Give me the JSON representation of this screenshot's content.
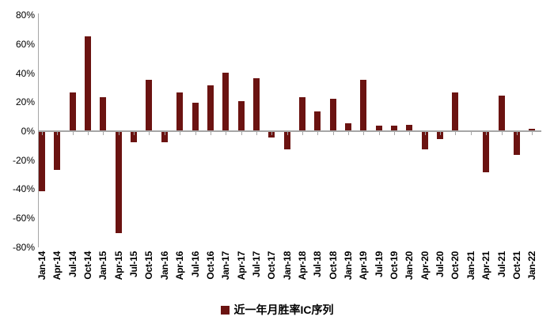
{
  "chart_data": {
    "type": "bar",
    "title": "",
    "xlabel": "",
    "ylabel": "",
    "categories": [
      "Jan-14",
      "Apr-14",
      "Jul-14",
      "Oct-14",
      "Jan-15",
      "Apr-15",
      "Jul-15",
      "Oct-15",
      "Jan-16",
      "Apr-16",
      "Jul-16",
      "Oct-16",
      "Jan-17",
      "Apr-17",
      "Jul-17",
      "Oct-17",
      "Jan-18",
      "Apr-18",
      "Jul-18",
      "Oct-18",
      "Jan-19",
      "Apr-19",
      "Jul-19",
      "Oct-19",
      "Jan-20",
      "Apr-20",
      "Jul-20",
      "Oct-20",
      "Jan-21",
      "Apr-21",
      "Jul-21",
      "Oct-21",
      "Jan-22"
    ],
    "values": [
      -41,
      -26,
      26,
      65,
      23,
      -70,
      -7,
      35,
      -7,
      26,
      19,
      31,
      40,
      20,
      36,
      -4,
      -12,
      23,
      13,
      22,
      5,
      35,
      3,
      3,
      4,
      -12,
      -5,
      26,
      0,
      -28,
      24,
      -16,
      1
    ],
    "unit": "%",
    "series_name": "近一年月胜率IC序列",
    "ylim": [
      -80,
      80
    ],
    "y_axis": {
      "ticks": [
        "80%",
        "60%",
        "40%",
        "20%",
        "0%",
        "-20%",
        "-40%",
        "-60%",
        "-80%"
      ]
    },
    "grid": false,
    "legend_position": "bottom",
    "bar_color": "#6b1311",
    "axis_color": "#a6a6a6"
  },
  "legend": {
    "label": "近一年月胜率IC序列",
    "swatch_color": "#6b1311"
  }
}
